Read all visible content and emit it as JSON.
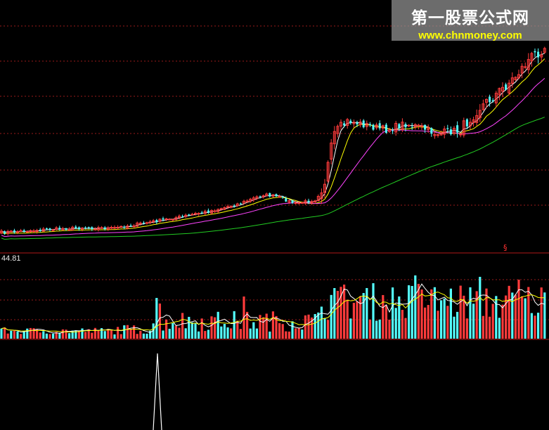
{
  "watermark": {
    "site_name": "第一股票公式网",
    "url": "www.chnmoney.com"
  },
  "volume_panel": {
    "value_label": "44.81"
  },
  "marker_label": "§",
  "colors": {
    "background": "#000000",
    "candle_up": "#ff3b3b",
    "candle_down": "#54ffff",
    "ma_short": "#ffffff",
    "ma_mid": "#ffff00",
    "ma_long": "#ff44ff",
    "ma_longest": "#22cc22",
    "grid": "#9a1a1a",
    "indicator_line": "#ffffff"
  },
  "chart_data": [
    {
      "type": "candlestick",
      "panel": "price",
      "ma_lines": [
        "short",
        "mid",
        "long",
        "longest"
      ]
    },
    {
      "type": "bar",
      "panel": "volume",
      "value_label": "44.81"
    },
    {
      "type": "line",
      "panel": "indicator"
    }
  ]
}
